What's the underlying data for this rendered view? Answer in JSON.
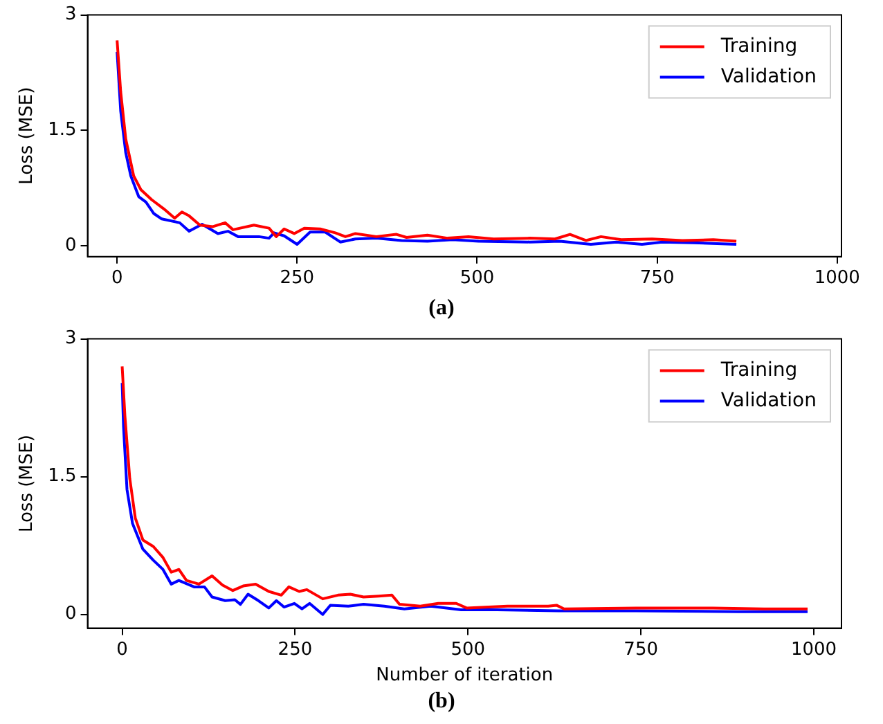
{
  "chart_data": [
    {
      "type": "line",
      "ylabel": "Loss (MSE)",
      "annotations": [
        "(a)"
      ],
      "legend": "top right",
      "grid": false,
      "marker": "none",
      "line_style": "solid",
      "xlim": [
        -41,
        1006
      ],
      "ylim": [
        -0.14,
        3
      ],
      "xticks": [
        0,
        250,
        500,
        750,
        1000
      ],
      "yticks": [
        0,
        1.5,
        3
      ],
      "series": [
        {
          "name": "Training",
          "color": "#ff0000",
          "x": [
            0,
            5,
            12,
            23,
            33,
            48,
            65,
            80,
            90,
            100,
            115,
            133,
            150,
            161,
            190,
            211,
            221,
            232,
            246,
            260,
            282,
            303,
            317,
            331,
            360,
            388,
            402,
            431,
            459,
            488,
            523,
            573,
            608,
            629,
            651,
            672,
            700,
            743,
            785,
            828,
            860
          ],
          "values": [
            2.67,
            2.0,
            1.39,
            0.91,
            0.73,
            0.6,
            0.48,
            0.36,
            0.44,
            0.39,
            0.27,
            0.25,
            0.3,
            0.21,
            0.27,
            0.23,
            0.12,
            0.22,
            0.16,
            0.23,
            0.22,
            0.17,
            0.12,
            0.16,
            0.12,
            0.15,
            0.11,
            0.14,
            0.1,
            0.12,
            0.09,
            0.1,
            0.09,
            0.15,
            0.07,
            0.12,
            0.08,
            0.09,
            0.07,
            0.08,
            0.06
          ]
        },
        {
          "name": "Validation",
          "color": "#0000ff",
          "x": [
            0,
            5,
            12,
            19,
            30,
            40,
            51,
            62,
            87,
            100,
            118,
            140,
            154,
            168,
            197,
            211,
            218,
            232,
            250,
            268,
            289,
            310,
            331,
            360,
            395,
            431,
            466,
            502,
            573,
            615,
            658,
            693,
            729,
            757,
            800,
            860
          ],
          "values": [
            2.52,
            1.75,
            1.21,
            0.91,
            0.64,
            0.57,
            0.42,
            0.35,
            0.3,
            0.19,
            0.28,
            0.16,
            0.19,
            0.12,
            0.12,
            0.1,
            0.17,
            0.13,
            0.02,
            0.18,
            0.18,
            0.05,
            0.09,
            0.1,
            0.07,
            0.06,
            0.08,
            0.06,
            0.05,
            0.06,
            0.02,
            0.05,
            0.02,
            0.05,
            0.04,
            0.02
          ]
        }
      ]
    },
    {
      "type": "line",
      "xlabel": "Number of iteration",
      "ylabel": "Loss (MSE)",
      "annotations": [
        "(b)"
      ],
      "legend": "top right",
      "grid": false,
      "marker": "none",
      "line_style": "solid",
      "xlim": [
        -50,
        1040
      ],
      "ylim": [
        -0.15,
        3
      ],
      "xticks": [
        0,
        250,
        500,
        750,
        1000
      ],
      "yticks": [
        0,
        1.5,
        3
      ],
      "series": [
        {
          "name": "Training",
          "color": "#ff0000",
          "x": [
            0,
            4,
            11,
            19,
            30,
            45,
            59,
            71,
            82,
            93,
            111,
            130,
            145,
            160,
            175,
            193,
            212,
            230,
            241,
            256,
            267,
            290,
            312,
            330,
            349,
            371,
            390,
            401,
            431,
            457,
            483,
            498,
            557,
            616,
            628,
            639,
            743,
            854,
            928,
            991
          ],
          "values": [
            2.7,
            2.16,
            1.48,
            1.05,
            0.81,
            0.74,
            0.62,
            0.46,
            0.49,
            0.37,
            0.33,
            0.42,
            0.32,
            0.26,
            0.31,
            0.33,
            0.25,
            0.21,
            0.3,
            0.25,
            0.27,
            0.17,
            0.21,
            0.22,
            0.19,
            0.2,
            0.21,
            0.11,
            0.09,
            0.12,
            0.12,
            0.07,
            0.09,
            0.09,
            0.1,
            0.06,
            0.07,
            0.07,
            0.06,
            0.06
          ]
        },
        {
          "name": "Validation",
          "color": "#0000ff",
          "x": [
            0,
            2,
            7,
            15,
            30,
            45,
            59,
            71,
            82,
            104,
            119,
            130,
            149,
            163,
            171,
            182,
            197,
            212,
            223,
            234,
            249,
            260,
            271,
            290,
            301,
            327,
            349,
            379,
            408,
            446,
            490,
            542,
            631,
            743,
            891,
            991
          ],
          "values": [
            2.52,
            2.04,
            1.36,
            0.99,
            0.71,
            0.59,
            0.49,
            0.33,
            0.37,
            0.3,
            0.3,
            0.19,
            0.15,
            0.16,
            0.11,
            0.22,
            0.15,
            0.07,
            0.15,
            0.08,
            0.12,
            0.06,
            0.12,
            0.0,
            0.1,
            0.09,
            0.11,
            0.09,
            0.06,
            0.09,
            0.05,
            0.05,
            0.04,
            0.04,
            0.03,
            0.03
          ]
        }
      ]
    }
  ]
}
